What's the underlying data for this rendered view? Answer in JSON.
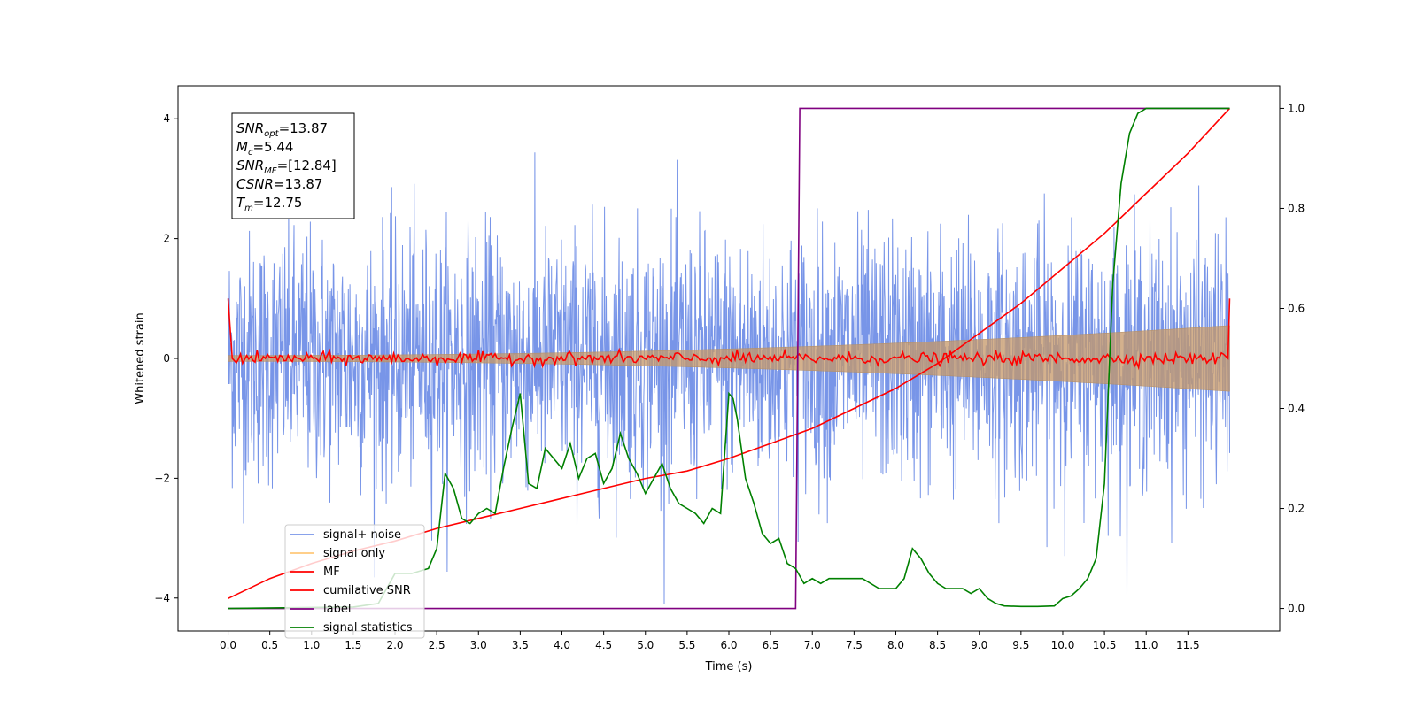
{
  "chart_data": {
    "type": "line",
    "xlabel": "Time (s)",
    "ylabel_left": "Whitened strain",
    "ylabel_right": "",
    "x_ticks": [
      "0.0",
      "0.5",
      "1.0",
      "1.5",
      "2.0",
      "2.5",
      "3.0",
      "3.5",
      "4.0",
      "4.5",
      "5.0",
      "5.5",
      "6.0",
      "6.5",
      "7.0",
      "7.5",
      "8.0",
      "8.5",
      "9.0",
      "9.5",
      "10.0",
      "10.5",
      "11.0",
      "11.5"
    ],
    "xlim": [
      -0.6,
      12.6
    ],
    "ylim_left": [
      -4.55,
      4.55
    ],
    "left_ticks": [
      "−4",
      "−2",
      "0",
      "2",
      "4"
    ],
    "ylim_right": [
      -0.045,
      1.045
    ],
    "right_ticks": [
      "0.0",
      "0.2",
      "0.4",
      "0.6",
      "0.8",
      "1.0"
    ],
    "legend_location": "lower-left",
    "annotation_lines": [
      {
        "name": "SNR",
        "sub": "opt",
        "value": "=13.87"
      },
      {
        "name": "M",
        "sub": "c",
        "value": "=5.44"
      },
      {
        "name": "SNR",
        "sub": "MF",
        "value": "=[12.84]"
      },
      {
        "name": "CSNR",
        "sub": "",
        "value": "=13.87"
      },
      {
        "name": "T",
        "sub": "m",
        "value": "=12.75"
      }
    ],
    "series": [
      {
        "name": "signal+ noise",
        "color": "#7895e8",
        "axis": "left",
        "description": "dense noise about 0, amplitude roughly ±2.5 with spikes to ±4, x from 0 to 12"
      },
      {
        "name": "signal only",
        "color": "#ffc87a",
        "axis": "left",
        "description": "chirp envelope growing from ±0.05 at 0 s to ±0.55 at 12 s"
      },
      {
        "name": "MF",
        "color": "#ff0000",
        "axis": "left",
        "description": "≈0 with small jitter, spikes to 1.0 at x=0 and x=12"
      },
      {
        "name": "cumilative SNR",
        "color": "#ff0000",
        "axis": "right",
        "x": [
          0,
          0.5,
          1,
          1.5,
          2,
          2.5,
          3,
          3.5,
          4,
          4.5,
          5,
          5.5,
          6,
          6.5,
          7,
          7.5,
          8,
          8.5,
          9,
          9.5,
          10,
          10.5,
          11,
          11.5,
          12
        ],
        "values": [
          0.02,
          0.06,
          0.09,
          0.115,
          0.135,
          0.16,
          0.18,
          0.2,
          0.22,
          0.24,
          0.26,
          0.275,
          0.3,
          0.33,
          0.36,
          0.4,
          0.44,
          0.49,
          0.55,
          0.61,
          0.68,
          0.75,
          0.83,
          0.91,
          1.0
        ]
      },
      {
        "name": "label",
        "color": "#800080",
        "axis": "right",
        "x": [
          0,
          6.8,
          6.85,
          12
        ],
        "values": [
          0,
          0,
          1,
          1
        ]
      },
      {
        "name": "signal statistics",
        "color": "#008000",
        "axis": "right",
        "x": [
          0,
          1.0,
          1.5,
          1.8,
          2.0,
          2.2,
          2.4,
          2.5,
          2.6,
          2.7,
          2.8,
          2.9,
          3.0,
          3.1,
          3.2,
          3.3,
          3.4,
          3.5,
          3.6,
          3.7,
          3.8,
          3.9,
          4.0,
          4.1,
          4.2,
          4.3,
          4.4,
          4.5,
          4.6,
          4.7,
          4.8,
          4.9,
          5.0,
          5.1,
          5.2,
          5.3,
          5.4,
          5.5,
          5.6,
          5.7,
          5.8,
          5.9,
          6.0,
          6.05,
          6.1,
          6.2,
          6.3,
          6.4,
          6.5,
          6.6,
          6.7,
          6.8,
          6.9,
          7.0,
          7.1,
          7.2,
          7.3,
          7.4,
          7.6,
          7.8,
          8.0,
          8.1,
          8.2,
          8.3,
          8.4,
          8.5,
          8.6,
          8.7,
          8.8,
          8.9,
          9.0,
          9.1,
          9.2,
          9.3,
          9.5,
          9.7,
          9.9,
          10.0,
          10.1,
          10.2,
          10.3,
          10.4,
          10.5,
          10.6,
          10.7,
          10.8,
          10.9,
          11.0,
          11.1,
          11.2,
          12.0
        ],
        "values": [
          0.0,
          0.002,
          0.003,
          0.01,
          0.07,
          0.07,
          0.08,
          0.12,
          0.27,
          0.24,
          0.18,
          0.17,
          0.19,
          0.2,
          0.19,
          0.28,
          0.36,
          0.43,
          0.25,
          0.24,
          0.32,
          0.3,
          0.28,
          0.33,
          0.26,
          0.3,
          0.31,
          0.25,
          0.28,
          0.35,
          0.3,
          0.27,
          0.23,
          0.26,
          0.29,
          0.24,
          0.21,
          0.2,
          0.19,
          0.17,
          0.2,
          0.19,
          0.43,
          0.42,
          0.38,
          0.26,
          0.21,
          0.15,
          0.13,
          0.14,
          0.09,
          0.08,
          0.05,
          0.06,
          0.05,
          0.06,
          0.06,
          0.06,
          0.06,
          0.04,
          0.04,
          0.06,
          0.12,
          0.1,
          0.07,
          0.05,
          0.04,
          0.04,
          0.04,
          0.03,
          0.04,
          0.02,
          0.01,
          0.005,
          0.004,
          0.004,
          0.005,
          0.02,
          0.025,
          0.04,
          0.06,
          0.1,
          0.25,
          0.65,
          0.85,
          0.95,
          0.99,
          1.0,
          1.0,
          1.0,
          1.0
        ]
      }
    ]
  }
}
